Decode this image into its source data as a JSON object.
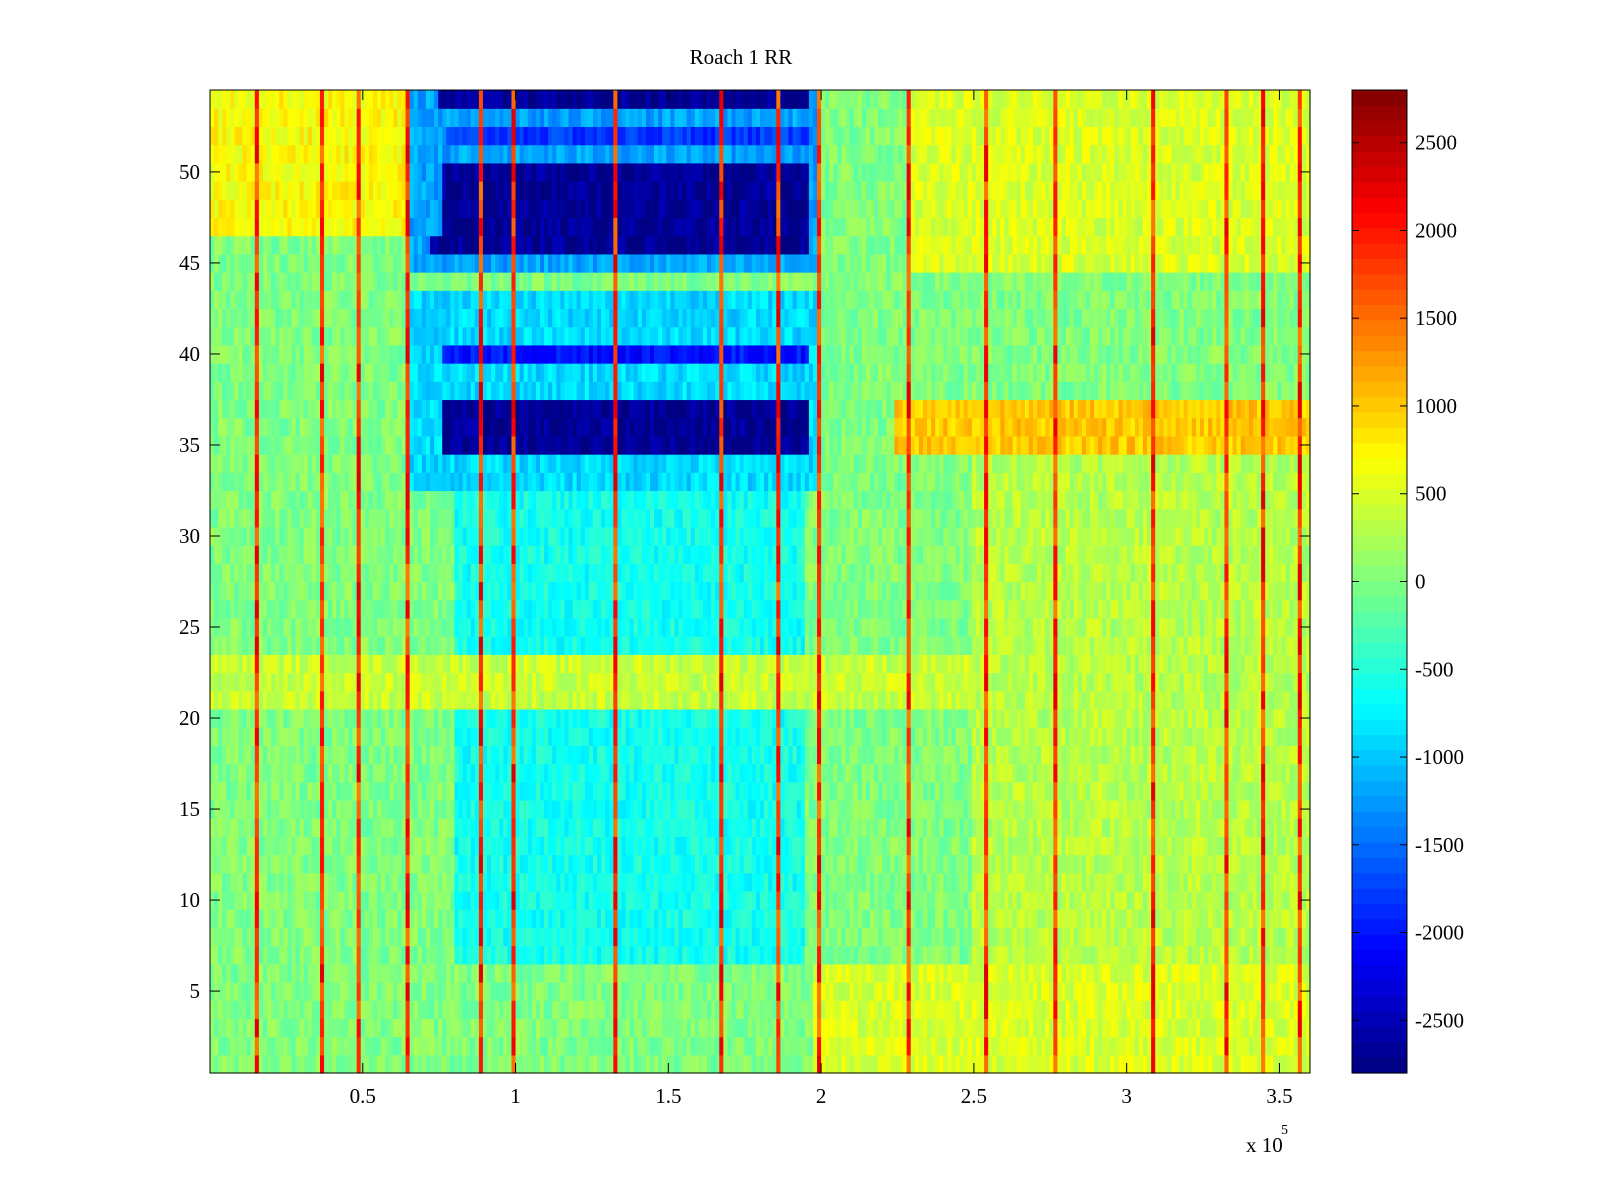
{
  "chart_data": {
    "type": "heatmap",
    "title": "Roach 1 RR",
    "xlabel": "",
    "ylabel": "",
    "x_exponent_label": "x 10",
    "x_exponent_power": "5",
    "xlim": [
      0,
      360000
    ],
    "ylim": [
      0.5,
      54.5
    ],
    "x_tick_values": [
      50000,
      100000,
      150000,
      200000,
      250000,
      300000,
      350000
    ],
    "x_tick_labels": [
      "0.5",
      "1",
      "1.5",
      "2",
      "2.5",
      "3",
      "3.5"
    ],
    "y_tick_values": [
      5,
      10,
      15,
      20,
      25,
      30,
      35,
      40,
      45,
      50
    ],
    "y_tick_labels": [
      "5",
      "10",
      "15",
      "20",
      "25",
      "30",
      "35",
      "40",
      "45",
      "50"
    ],
    "colorbar": {
      "colormap": "jet",
      "clim": [
        -2800,
        2800
      ],
      "tick_values": [
        2500,
        2000,
        1500,
        1000,
        500,
        0,
        -500,
        -1000,
        -1500,
        -2000,
        -2500
      ],
      "tick_labels": [
        "2500",
        "2000",
        "1500",
        "1000",
        "500",
        "0",
        "-500",
        "-1000",
        "-1500",
        "-2000",
        "-2500"
      ]
    },
    "rows": 54,
    "background_value": 0,
    "regions": [
      {
        "rows": [
          45,
          54
        ],
        "x": [
          66000,
          198000
        ],
        "value": -1200
      },
      {
        "rows": [
          54,
          54
        ],
        "x": [
          75000,
          196000
        ],
        "value": -2700
      },
      {
        "rows": [
          52,
          52
        ],
        "x": [
          78000,
          196000
        ],
        "value": -1800
      },
      {
        "rows": [
          47,
          50
        ],
        "x": [
          76000,
          196000
        ],
        "value": -2700
      },
      {
        "rows": [
          46,
          46
        ],
        "x": [
          72000,
          196000
        ],
        "value": -2700
      },
      {
        "rows": [
          33,
          43
        ],
        "x": [
          66000,
          198000
        ],
        "value": -900
      },
      {
        "rows": [
          35,
          37
        ],
        "x": [
          76000,
          196000
        ],
        "value": -2700
      },
      {
        "rows": [
          40,
          40
        ],
        "x": [
          76000,
          196000
        ],
        "value": -2000
      },
      {
        "rows": [
          7,
          32
        ],
        "x": [
          80000,
          195000
        ],
        "value": -600
      },
      {
        "rows": [
          47,
          54
        ],
        "x": [
          0,
          65000
        ],
        "value": 700
      },
      {
        "rows": [
          45,
          54
        ],
        "x": [
          228000,
          360000
        ],
        "value": 500
      },
      {
        "rows": [
          35,
          37
        ],
        "x": [
          224000,
          360000
        ],
        "value": 1000
      },
      {
        "rows": [
          21,
          23
        ],
        "x": [
          0,
          360000
        ],
        "value": 400
      },
      {
        "rows": [
          1,
          6
        ],
        "x": [
          198000,
          360000
        ],
        "value": 500
      },
      {
        "rows": [
          7,
          34
        ],
        "x": [
          250000,
          360000
        ],
        "value": 300
      }
    ],
    "spikes_x": [
      15000,
      37000,
      49000,
      65000,
      88000,
      99000,
      133000,
      167000,
      186000,
      199000,
      228000,
      254000,
      276000,
      308000,
      332000,
      344000,
      357000
    ]
  }
}
